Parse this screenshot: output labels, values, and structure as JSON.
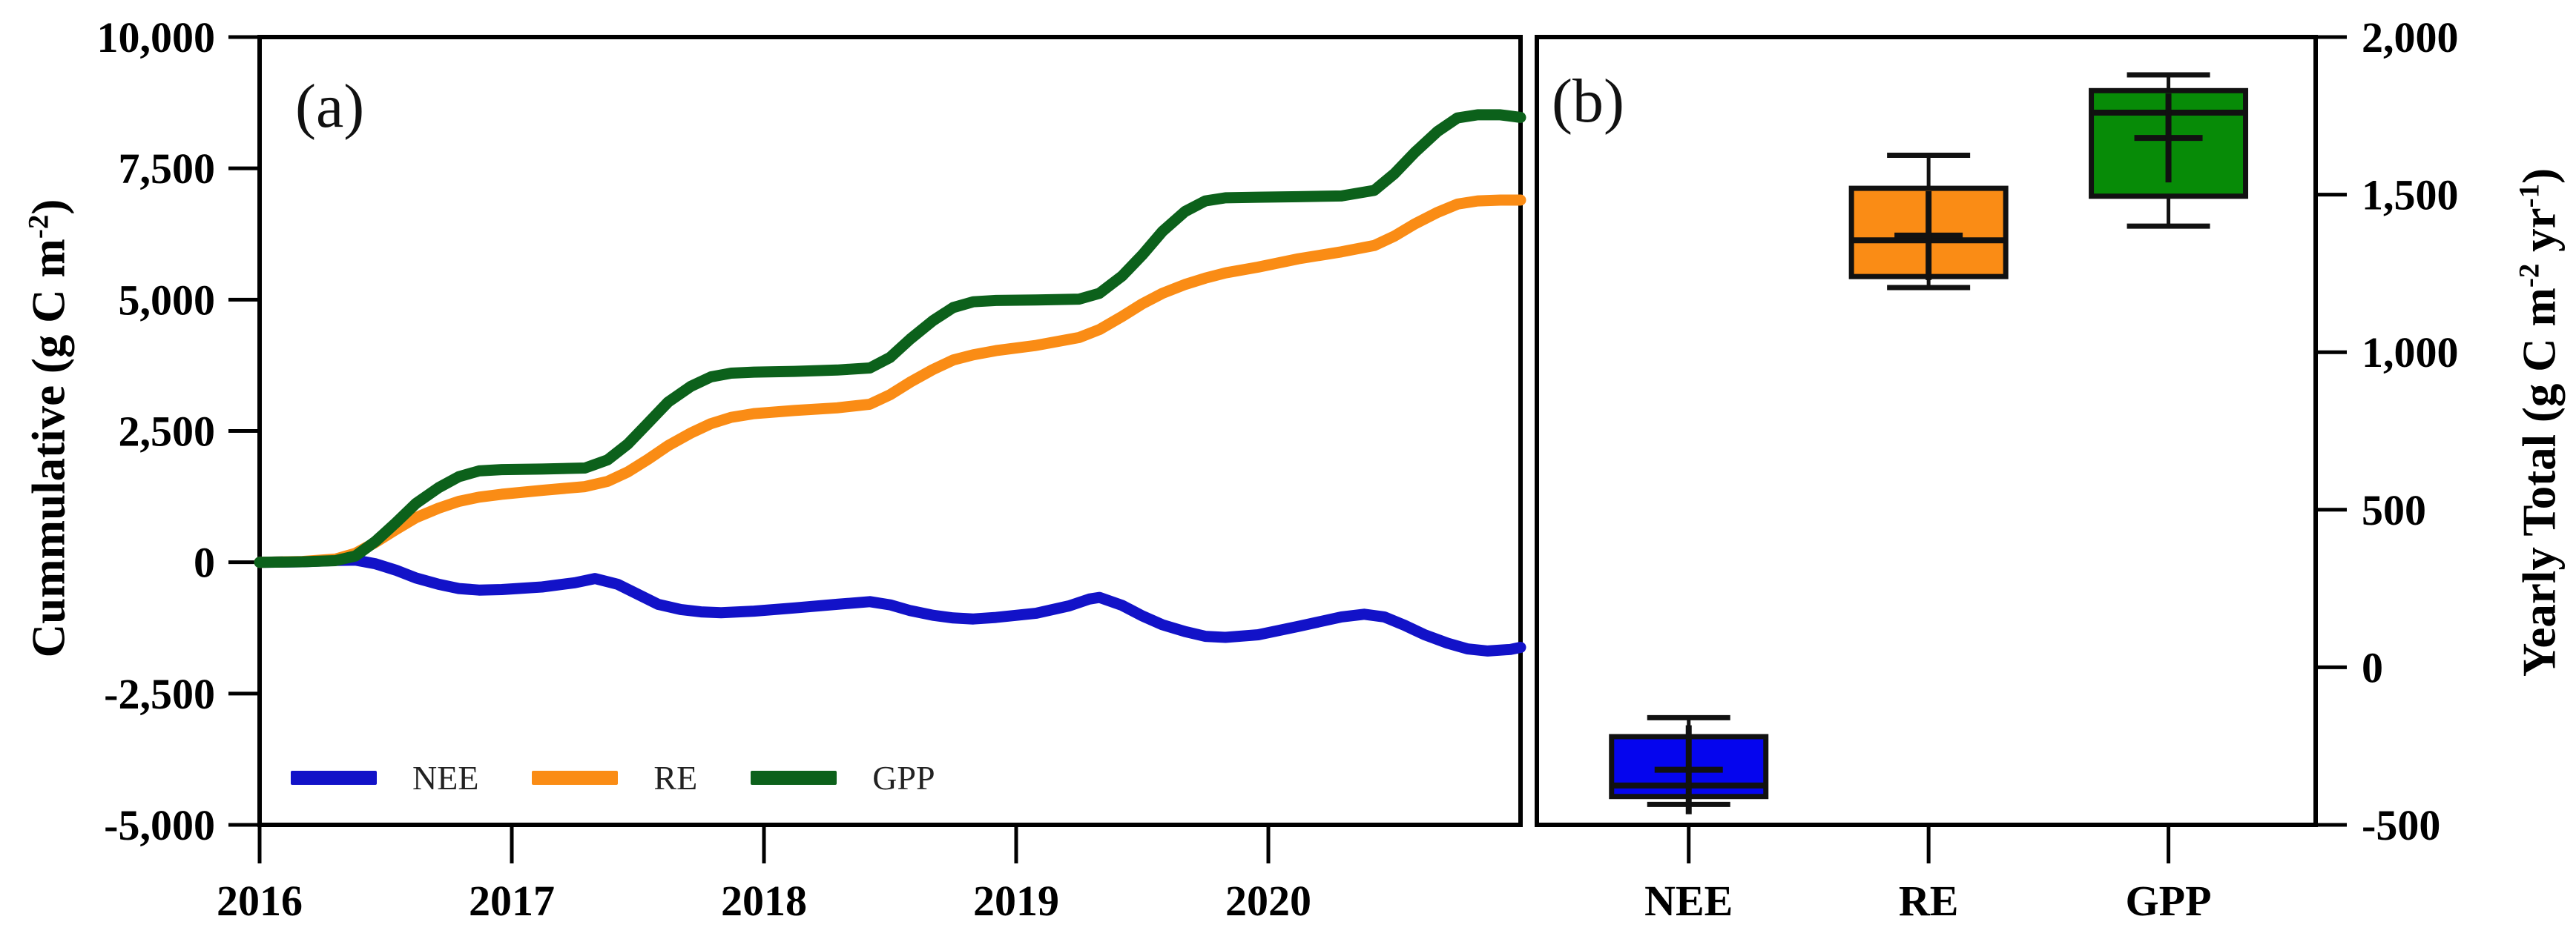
{
  "figure": {
    "panel_a": {
      "label": "(a)"
    },
    "panel_b": {
      "label": "(b)"
    },
    "left_axis": {
      "title_pre": "Cummulative (g C m",
      "title_sup": "-2",
      "title_post": ")"
    },
    "right_axis": {
      "title_pre": "Yearly Total (g C m",
      "title_sup1": "-2",
      "title_mid": " yr",
      "title_sup2": "-1",
      "title_post": ")"
    }
  },
  "chart_data": [
    {
      "type": "line",
      "panel": "a",
      "ylabel": "Cummulative (g C m-2)",
      "xlim": [
        2016,
        2021
      ],
      "ylim": [
        -5000,
        10000
      ],
      "grid": false,
      "legend_position": "inside-bottom-left",
      "x_ticks": [
        {
          "v": 2016,
          "label": "2016"
        },
        {
          "v": 2017,
          "label": "2017"
        },
        {
          "v": 2018,
          "label": "2018"
        },
        {
          "v": 2019,
          "label": "2019"
        },
        {
          "v": 2020,
          "label": "2020"
        }
      ],
      "y_ticks": [
        {
          "v": 10000,
          "label": "10,000"
        },
        {
          "v": 7500,
          "label": "7,500"
        },
        {
          "v": 5000,
          "label": "5,000"
        },
        {
          "v": 2500,
          "label": "2,500"
        },
        {
          "v": 0,
          "label": "0"
        },
        {
          "v": -2500,
          "label": "-2,500"
        },
        {
          "v": -5000,
          "label": "-5,000"
        }
      ],
      "series": [
        {
          "name": "NEE",
          "color": "#1212C8",
          "points": [
            [
              2016.0,
              0
            ],
            [
              2016.17,
              10
            ],
            [
              2016.3,
              35
            ],
            [
              2016.38,
              40
            ],
            [
              2016.46,
              -30
            ],
            [
              2016.54,
              -150
            ],
            [
              2016.62,
              -300
            ],
            [
              2016.71,
              -420
            ],
            [
              2016.79,
              -500
            ],
            [
              2016.87,
              -530
            ],
            [
              2016.96,
              -520
            ],
            [
              2017.12,
              -470
            ],
            [
              2017.25,
              -390
            ],
            [
              2017.33,
              -310
            ],
            [
              2017.42,
              -420
            ],
            [
              2017.5,
              -610
            ],
            [
              2017.58,
              -800
            ],
            [
              2017.67,
              -900
            ],
            [
              2017.75,
              -945
            ],
            [
              2017.83,
              -960
            ],
            [
              2017.96,
              -930
            ],
            [
              2018.12,
              -870
            ],
            [
              2018.29,
              -800
            ],
            [
              2018.42,
              -750
            ],
            [
              2018.5,
              -810
            ],
            [
              2018.58,
              -920
            ],
            [
              2018.67,
              -1010
            ],
            [
              2018.75,
              -1060
            ],
            [
              2018.83,
              -1080
            ],
            [
              2018.92,
              -1050
            ],
            [
              2019.08,
              -970
            ],
            [
              2019.21,
              -830
            ],
            [
              2019.29,
              -700
            ],
            [
              2019.33,
              -670
            ],
            [
              2019.42,
              -820
            ],
            [
              2019.5,
              -1020
            ],
            [
              2019.58,
              -1190
            ],
            [
              2019.67,
              -1320
            ],
            [
              2019.75,
              -1410
            ],
            [
              2019.83,
              -1430
            ],
            [
              2019.96,
              -1380
            ],
            [
              2020.12,
              -1220
            ],
            [
              2020.29,
              -1040
            ],
            [
              2020.38,
              -990
            ],
            [
              2020.46,
              -1040
            ],
            [
              2020.54,
              -1200
            ],
            [
              2020.62,
              -1380
            ],
            [
              2020.71,
              -1540
            ],
            [
              2020.79,
              -1650
            ],
            [
              2020.87,
              -1690
            ],
            [
              2020.96,
              -1660
            ],
            [
              2021.0,
              -1620
            ]
          ]
        },
        {
          "name": "RE",
          "color": "#FA8C15",
          "points": [
            [
              2016.0,
              0
            ],
            [
              2016.17,
              15
            ],
            [
              2016.3,
              60
            ],
            [
              2016.38,
              170
            ],
            [
              2016.46,
              380
            ],
            [
              2016.54,
              620
            ],
            [
              2016.62,
              850
            ],
            [
              2016.71,
              1030
            ],
            [
              2016.79,
              1160
            ],
            [
              2016.87,
              1240
            ],
            [
              2016.96,
              1295
            ],
            [
              2017.12,
              1370
            ],
            [
              2017.29,
              1440
            ],
            [
              2017.38,
              1540
            ],
            [
              2017.46,
              1720
            ],
            [
              2017.54,
              1960
            ],
            [
              2017.62,
              2220
            ],
            [
              2017.71,
              2460
            ],
            [
              2017.79,
              2640
            ],
            [
              2017.87,
              2760
            ],
            [
              2017.96,
              2830
            ],
            [
              2018.12,
              2890
            ],
            [
              2018.29,
              2940
            ],
            [
              2018.42,
              3010
            ],
            [
              2018.5,
              3190
            ],
            [
              2018.58,
              3430
            ],
            [
              2018.67,
              3670
            ],
            [
              2018.75,
              3850
            ],
            [
              2018.83,
              3950
            ],
            [
              2018.92,
              4030
            ],
            [
              2019.08,
              4130
            ],
            [
              2019.25,
              4280
            ],
            [
              2019.33,
              4430
            ],
            [
              2019.42,
              4680
            ],
            [
              2019.5,
              4920
            ],
            [
              2019.58,
              5120
            ],
            [
              2019.67,
              5290
            ],
            [
              2019.75,
              5410
            ],
            [
              2019.83,
              5510
            ],
            [
              2019.96,
              5620
            ],
            [
              2020.12,
              5780
            ],
            [
              2020.29,
              5910
            ],
            [
              2020.42,
              6030
            ],
            [
              2020.5,
              6210
            ],
            [
              2020.58,
              6440
            ],
            [
              2020.67,
              6660
            ],
            [
              2020.75,
              6820
            ],
            [
              2020.83,
              6880
            ],
            [
              2020.92,
              6895
            ],
            [
              2021.0,
              6895
            ]
          ]
        },
        {
          "name": "GPP",
          "color": "#0C611B",
          "points": [
            [
              2016.0,
              0
            ],
            [
              2016.17,
              10
            ],
            [
              2016.3,
              30
            ],
            [
              2016.38,
              120
            ],
            [
              2016.46,
              400
            ],
            [
              2016.54,
              750
            ],
            [
              2016.62,
              1120
            ],
            [
              2016.71,
              1420
            ],
            [
              2016.79,
              1630
            ],
            [
              2016.87,
              1740
            ],
            [
              2016.96,
              1765
            ],
            [
              2017.12,
              1775
            ],
            [
              2017.29,
              1795
            ],
            [
              2017.38,
              1950
            ],
            [
              2017.46,
              2250
            ],
            [
              2017.54,
              2650
            ],
            [
              2017.62,
              3050
            ],
            [
              2017.71,
              3350
            ],
            [
              2017.79,
              3530
            ],
            [
              2017.87,
              3600
            ],
            [
              2017.96,
              3620
            ],
            [
              2018.12,
              3635
            ],
            [
              2018.29,
              3660
            ],
            [
              2018.42,
              3700
            ],
            [
              2018.5,
              3900
            ],
            [
              2018.58,
              4250
            ],
            [
              2018.67,
              4600
            ],
            [
              2018.75,
              4850
            ],
            [
              2018.83,
              4960
            ],
            [
              2018.92,
              4985
            ],
            [
              2019.08,
              4995
            ],
            [
              2019.25,
              5010
            ],
            [
              2019.33,
              5120
            ],
            [
              2019.42,
              5450
            ],
            [
              2019.5,
              5850
            ],
            [
              2019.58,
              6300
            ],
            [
              2019.67,
              6680
            ],
            [
              2019.75,
              6880
            ],
            [
              2019.83,
              6940
            ],
            [
              2019.96,
              6950
            ],
            [
              2020.12,
              6960
            ],
            [
              2020.29,
              6975
            ],
            [
              2020.42,
              7080
            ],
            [
              2020.5,
              7400
            ],
            [
              2020.58,
              7800
            ],
            [
              2020.67,
              8200
            ],
            [
              2020.75,
              8460
            ],
            [
              2020.83,
              8520
            ],
            [
              2020.92,
              8520
            ],
            [
              2021.0,
              8470
            ]
          ]
        }
      ]
    },
    {
      "type": "box",
      "panel": "b",
      "ylabel": "Yearly Total (g C m-2 yr-1)",
      "ylim": [
        -500,
        2000
      ],
      "grid": false,
      "y_ticks": [
        {
          "v": 2000,
          "label": "2,000"
        },
        {
          "v": 1500,
          "label": "1,500"
        },
        {
          "v": 1000,
          "label": "1,000"
        },
        {
          "v": 500,
          "label": "500"
        },
        {
          "v": 0,
          "label": "0"
        },
        {
          "v": -500,
          "label": "-500"
        }
      ],
      "categories": [
        "NEE",
        "RE",
        "GPP"
      ],
      "boxes": [
        {
          "category": "NEE",
          "color": "#0505EE",
          "whisker_low": -435,
          "q1": -410,
          "median": -375,
          "q3": -220,
          "whisker_high": -160,
          "mean": -325
        },
        {
          "category": "RE",
          "color": "#FA8C15",
          "whisker_low": 1205,
          "q1": 1240,
          "median": 1355,
          "q3": 1520,
          "whisker_high": 1625,
          "mean": 1370
        },
        {
          "category": "GPP",
          "color": "#078B07",
          "whisker_low": 1400,
          "q1": 1495,
          "median": 1760,
          "q3": 1830,
          "whisker_high": 1880,
          "mean": 1680
        }
      ]
    }
  ]
}
